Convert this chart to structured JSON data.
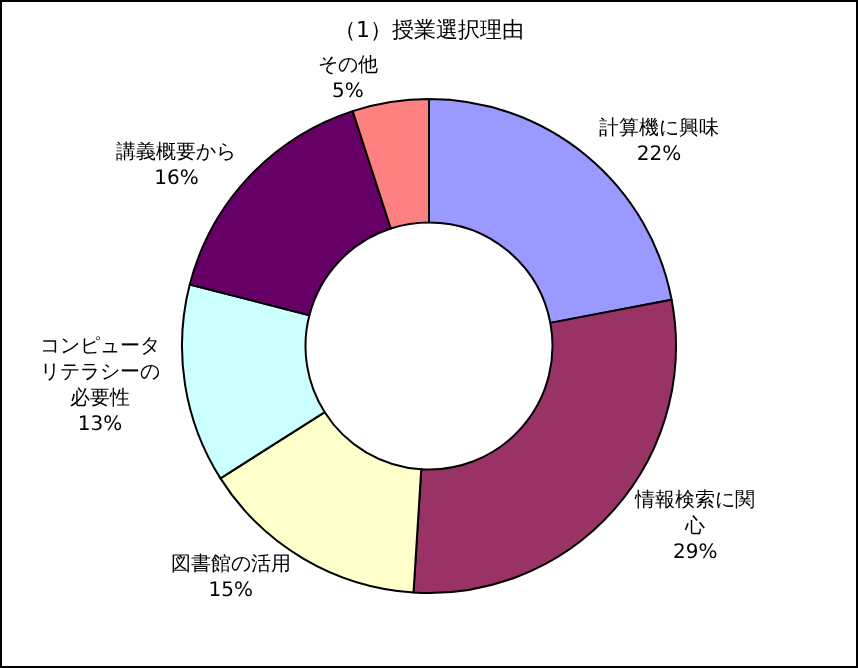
{
  "chart_data": {
    "type": "donut",
    "title": "（1）授業選択理由",
    "categories": [
      "計算機に興味",
      "情報検索に関心",
      "図書館の活用",
      "コンピュータリテラシーの必要性",
      "講義概要から",
      "その他"
    ],
    "values": [
      22,
      29,
      15,
      13,
      16,
      5
    ],
    "value_labels": [
      "22%",
      "29%",
      "15%",
      "13%",
      "16%",
      "5%"
    ],
    "colors": [
      "#9999ff",
      "#993366",
      "#ffffcc",
      "#ccffff",
      "#660066",
      "#ff8080"
    ],
    "legend": false
  }
}
